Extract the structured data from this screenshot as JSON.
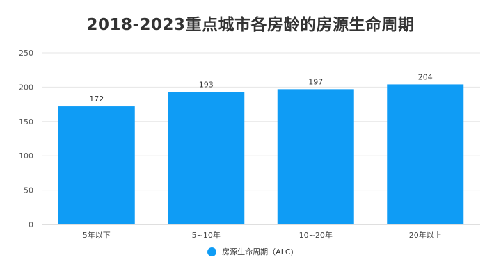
{
  "chart_data": {
    "type": "bar",
    "title": "2018-2023重点城市各房龄的房源生命周期",
    "categories": [
      "5年以下",
      "5~10年",
      "10~20年",
      "20年以上"
    ],
    "series": [
      {
        "name": "房源生命周期（ALC)",
        "values": [
          172,
          193,
          197,
          204
        ],
        "color": "#0f9cf5"
      }
    ],
    "data_labels": [
      "172",
      "193",
      "197",
      "204"
    ],
    "ylim": [
      0,
      250
    ],
    "yticks": [
      0,
      50,
      100,
      150,
      200,
      250
    ],
    "ytick_labels": [
      "0",
      "50",
      "100",
      "150",
      "200",
      "250"
    ],
    "xlabel": "",
    "ylabel": "",
    "grid": true,
    "legend_position": "bottom"
  }
}
